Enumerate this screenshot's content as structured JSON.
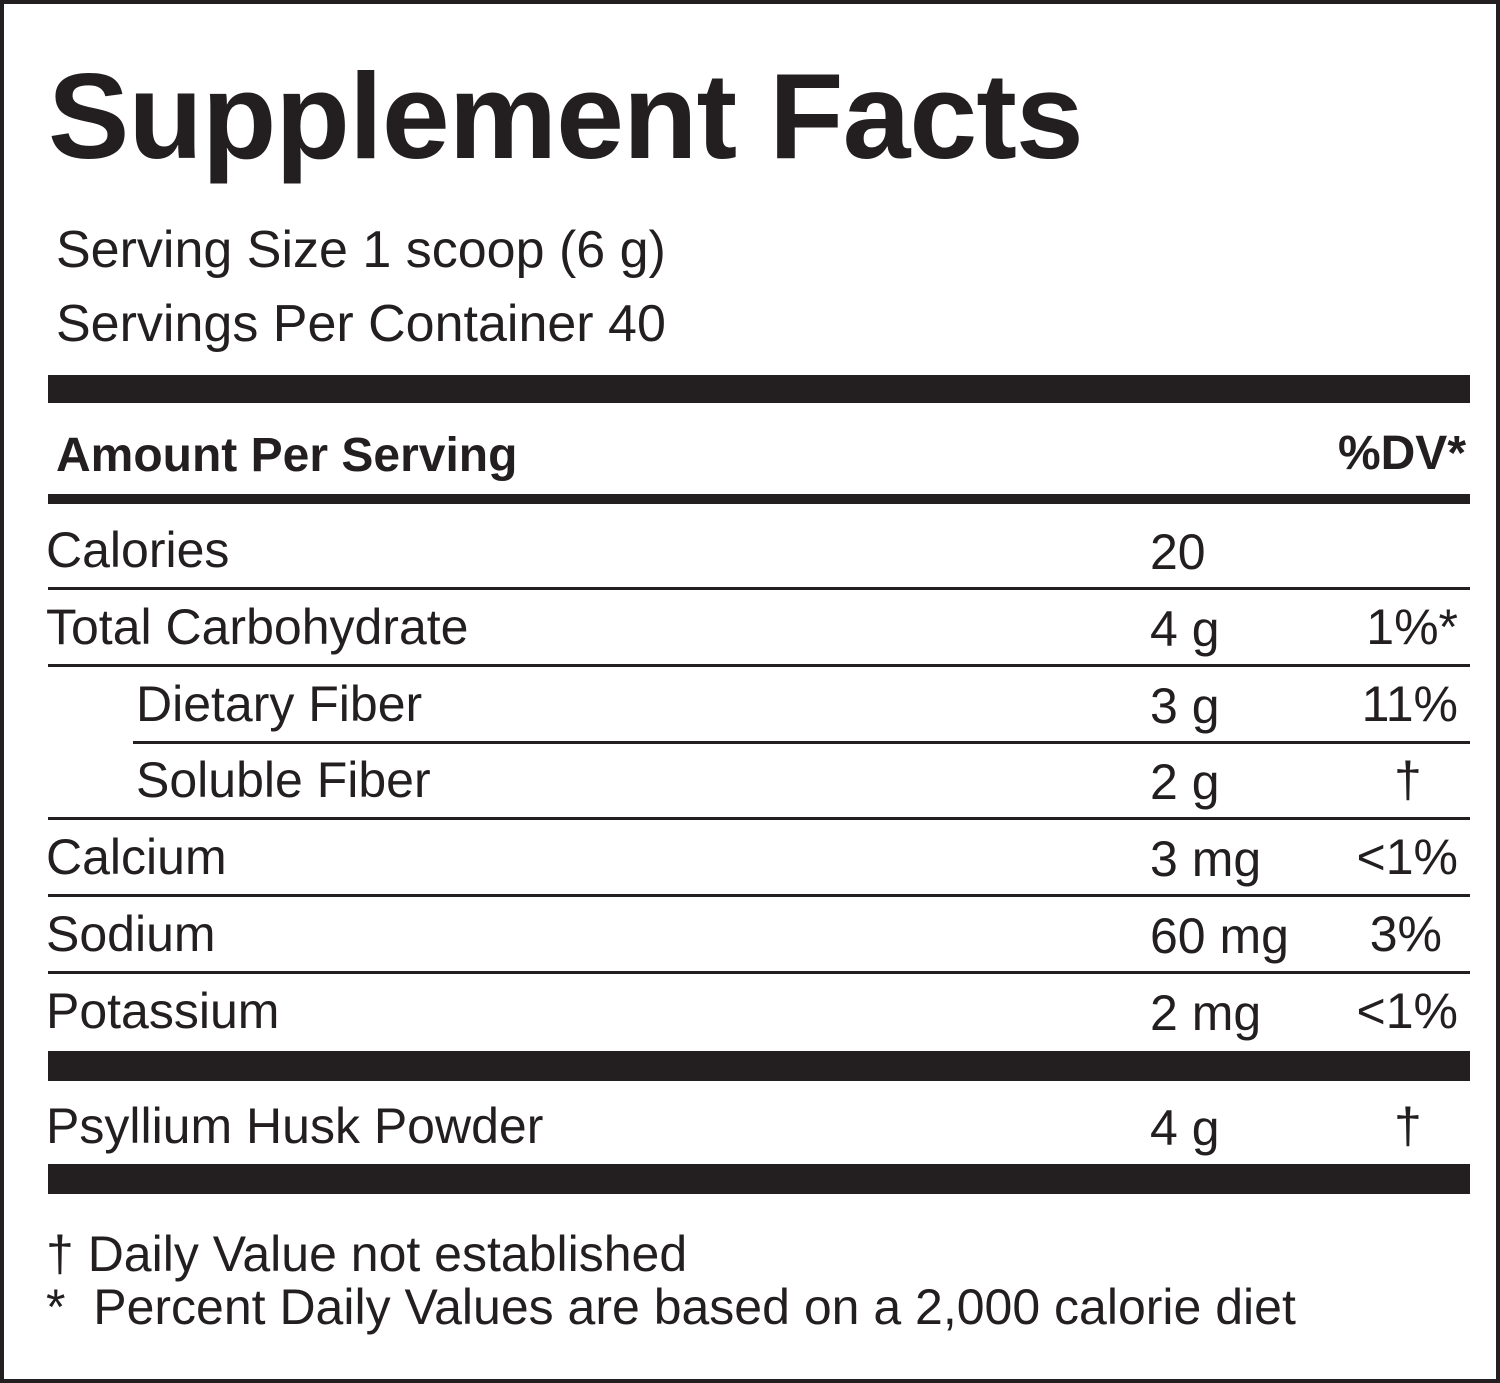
{
  "title": "Supplement Facts",
  "serving_size": "Serving Size 1 scoop (6 g)",
  "servings_per_container": "Servings Per Container 40",
  "header": {
    "amount": "Amount Per Serving",
    "dv": "%DV*"
  },
  "rows": [
    {
      "name": "Calories",
      "amount": "20",
      "dv": null,
      "indent": false
    },
    {
      "name": "Total Carbohydrate",
      "amount": "4 g",
      "dv": "1%*",
      "indent": false
    },
    {
      "name": "Dietary Fiber",
      "amount": "3 g",
      "dv": "11%",
      "indent": true
    },
    {
      "name": "Soluble Fiber",
      "amount": "2 g",
      "dv": "†",
      "indent": true
    },
    {
      "name": "Calcium",
      "amount": "3 mg",
      "dv": "<1%",
      "indent": false
    },
    {
      "name": "Sodium",
      "amount": "60 mg",
      "dv": "3%",
      "indent": false
    },
    {
      "name": "Potassium",
      "amount": "2 mg",
      "dv": "<1%",
      "indent": false
    }
  ],
  "ingredient": {
    "name": "Psyllium Husk Powder",
    "amount": "4 g",
    "dv": "†"
  },
  "footnotes": [
    "† Daily Value not established",
    "*  Percent Daily Values are based on a 2,000 calorie diet"
  ]
}
